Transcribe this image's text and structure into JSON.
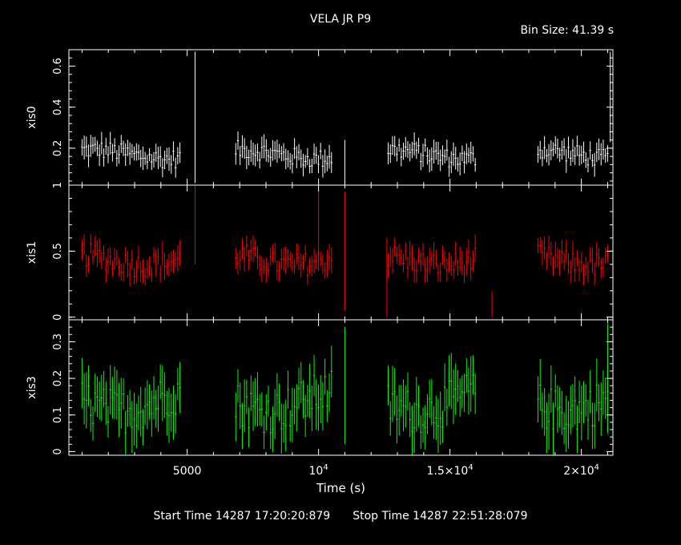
{
  "header": {
    "title": "VELA JR P9",
    "bin_size_label": "Bin Size: 41.39 s"
  },
  "footer": {
    "start_time": "Start Time 14287 17:20:20:879",
    "stop_time": "Stop Time 14287 22:51:28:079"
  },
  "colors": {
    "xis0": "#ffffff",
    "xis1": "#ff0000",
    "xis3": "#00ff00",
    "frame": "#ffffff",
    "background": "#000000"
  },
  "chart_data": {
    "type": "scatter",
    "title": "VELA JR P9",
    "xlabel": "Time (s)",
    "xlim": [
      500,
      21200
    ],
    "x_tick_labels": [
      {
        "value": 5000,
        "base": "5000",
        "sup": ""
      },
      {
        "value": 10000,
        "base": "10",
        "sup": "4"
      },
      {
        "value": 15000,
        "base": "1.5×10",
        "sup": "4"
      },
      {
        "value": 20000,
        "base": "2×10",
        "sup": "4"
      }
    ],
    "good_time_intervals": [
      [
        1000,
        4750
      ],
      [
        6850,
        10500
      ],
      [
        12650,
        16000
      ],
      [
        18350,
        21050
      ]
    ],
    "panels": [
      {
        "name": "xis0",
        "ylabel": "xis0",
        "ylim": [
          0.02,
          0.68
        ],
        "yticks": [
          0.2,
          0.4,
          0.6
        ],
        "ytick_labels": [
          "0.2",
          "0.4",
          "0.6"
        ],
        "mean": 0.17,
        "spread": 0.045,
        "err": 0.045,
        "spikes": [
          {
            "x": 5300,
            "y": 0.35,
            "err": 0.32
          },
          {
            "x": 11000,
            "y": 0.12,
            "err": 0.12
          },
          {
            "x": 21100,
            "y": 0.45,
            "err": 0.22
          }
        ]
      },
      {
        "name": "xis1",
        "ylabel": "xis1",
        "ylim": [
          -0.02,
          1.0
        ],
        "yticks": [
          0,
          0.5,
          1
        ],
        "ytick_labels": [
          "0",
          "0.5",
          "1"
        ],
        "mean": 0.44,
        "spread": 0.09,
        "err": 0.08,
        "spikes": [
          {
            "x": 5300,
            "y": 0.7,
            "err": 0.3
          },
          {
            "x": 10000,
            "y": 0.65,
            "err": 0.3
          },
          {
            "x": 11000,
            "y": 0.5,
            "err": 0.45
          },
          {
            "x": 12600,
            "y": 0.3,
            "err": 0.3
          },
          {
            "x": 16600,
            "y": 0.1,
            "err": 0.1
          }
        ]
      },
      {
        "name": "xis3",
        "ylabel": "xis3",
        "ylim": [
          -0.01,
          0.36
        ],
        "yticks": [
          0,
          0.1,
          0.2,
          0.3
        ],
        "ytick_labels": [
          "0",
          "0.1",
          "0.2",
          "0.3"
        ],
        "mean": 0.14,
        "spread": 0.06,
        "err": 0.06,
        "spikes": [
          {
            "x": 11000,
            "y": 0.18,
            "err": 0.16
          },
          {
            "x": 21000,
            "y": 0.2,
            "err": 0.15
          }
        ]
      }
    ]
  }
}
